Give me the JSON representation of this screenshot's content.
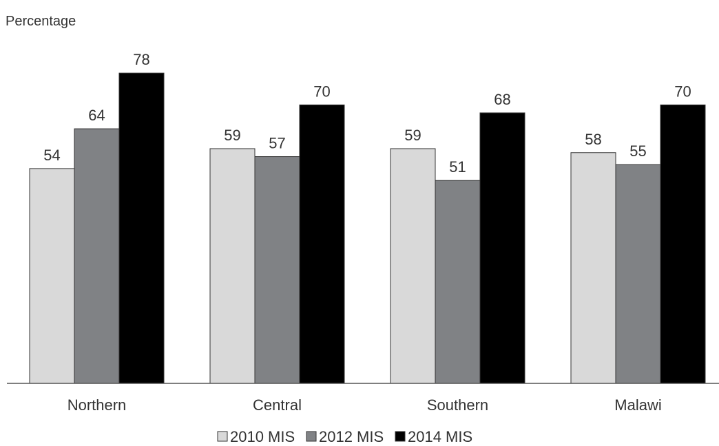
{
  "chart_data": {
    "type": "bar",
    "ylabel": "Percentage",
    "categories": [
      "Northern",
      "Central",
      "Southern",
      "Malawi"
    ],
    "series": [
      {
        "name": "2010 MIS",
        "values": [
          54,
          59,
          59,
          58
        ],
        "color": "#d9d9d9"
      },
      {
        "name": "2012 MIS",
        "values": [
          64,
          57,
          51,
          55
        ],
        "color": "#808285"
      },
      {
        "name": "2014 MIS",
        "values": [
          78,
          70,
          68,
          70
        ],
        "color": "#000000"
      }
    ],
    "ylim": [
      0,
      100
    ],
    "grid": false,
    "legend_position": "bottom"
  }
}
